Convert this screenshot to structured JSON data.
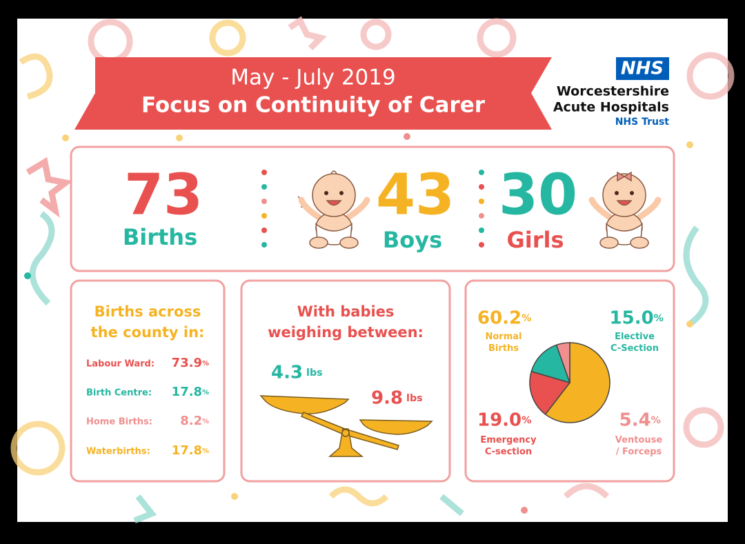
{
  "header": {
    "subtitle": "May - July 2019",
    "title": "Focus on Continuity of Carer"
  },
  "logo": {
    "badge": "NHS",
    "name_line1": "Worcestershire",
    "name_line2": "Acute Hospitals",
    "trust": "NHS Trust"
  },
  "stats": {
    "births": {
      "value": 73,
      "label": "Births"
    },
    "boys": {
      "value": 43,
      "label": "Boys"
    },
    "girls": {
      "value": 30,
      "label": "Girls"
    }
  },
  "county": {
    "title_line1": "Births across",
    "title_line2": "the county in:",
    "rows": [
      {
        "label": "Labour Ward:",
        "value": "73.9%"
      },
      {
        "label": "Birth Centre:",
        "value": "17.8%"
      },
      {
        "label": "Home Births:",
        "value": "8.2%"
      },
      {
        "label": "Waterbirths:",
        "value": "17.8%"
      }
    ]
  },
  "weights": {
    "title_line1": "With babies",
    "title_line2": "weighing between:",
    "low": "4.3 lbs",
    "high": "9.8 lbs"
  },
  "chart_data": {
    "type": "pie",
    "categories": [
      "Normal\nBirths",
      "Emergency\nC-section",
      "Elective\nC-Section",
      "Ventouse\n/ Forceps"
    ],
    "values": [
      60.2,
      19.0,
      15.0,
      5.4
    ],
    "value_labels": [
      "60.2%",
      "19.0%",
      "15.0%",
      "5.4%"
    ],
    "colors": [
      "#f5b324",
      "#e8514f",
      "#25b7a1",
      "#f08f8f"
    ]
  }
}
